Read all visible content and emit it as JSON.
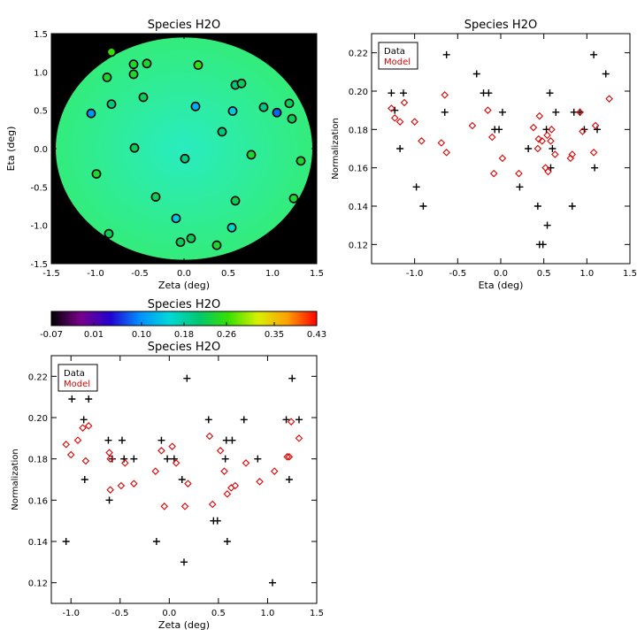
{
  "chart_data": [
    {
      "type": "heatmap",
      "title": "Species H2O",
      "xlabel": "Zeta (deg)",
      "ylabel": "Eta (deg)",
      "xlim": [
        -1.5,
        1.5
      ],
      "ylim": [
        -1.5,
        1.5
      ],
      "xticks": [
        "-1.5",
        "-1.0",
        "-0.5",
        "0.0",
        "0.5",
        "1.0",
        "1.5"
      ],
      "yticks": [
        "-1.5",
        "-1.0",
        "-0.5",
        "0.0",
        "0.5",
        "1.0",
        "1.5"
      ],
      "background_color": "#000000",
      "disk_radius": 1.45,
      "disk_color_center": "#29ecc0",
      "disk_color_edge": "#33ec7b",
      "points": [
        {
          "x": -0.82,
          "y": 1.26,
          "v": 0.26
        },
        {
          "x": -0.57,
          "y": 1.1,
          "v": 0.24
        },
        {
          "x": -0.42,
          "y": 1.11,
          "v": 0.24
        },
        {
          "x": -0.57,
          "y": 0.97,
          "v": 0.24
        },
        {
          "x": -0.87,
          "y": 0.93,
          "v": 0.24
        },
        {
          "x": 0.16,
          "y": 1.09,
          "v": 0.26
        },
        {
          "x": 0.58,
          "y": 0.83,
          "v": 0.2
        },
        {
          "x": 0.65,
          "y": 0.85,
          "v": 0.22
        },
        {
          "x": -0.46,
          "y": 0.67,
          "v": 0.22
        },
        {
          "x": -0.82,
          "y": 0.58,
          "v": 0.2
        },
        {
          "x": -1.05,
          "y": 0.46,
          "v": 0.1
        },
        {
          "x": 0.13,
          "y": 0.55,
          "v": 0.12
        },
        {
          "x": 0.55,
          "y": 0.49,
          "v": 0.14
        },
        {
          "x": 0.9,
          "y": 0.54,
          "v": 0.2
        },
        {
          "x": 1.05,
          "y": 0.47,
          "v": 0.08
        },
        {
          "x": 1.19,
          "y": 0.59,
          "v": 0.22
        },
        {
          "x": 1.22,
          "y": 0.39,
          "v": 0.22
        },
        {
          "x": 0.43,
          "y": 0.22,
          "v": 0.2
        },
        {
          "x": -0.56,
          "y": 0.01,
          "v": 0.22
        },
        {
          "x": 0.01,
          "y": -0.13,
          "v": 0.2
        },
        {
          "x": 0.76,
          "y": -0.08,
          "v": 0.24
        },
        {
          "x": 1.32,
          "y": -0.16,
          "v": 0.24
        },
        {
          "x": -0.99,
          "y": -0.33,
          "v": 0.24
        },
        {
          "x": -0.32,
          "y": -0.63,
          "v": 0.22
        },
        {
          "x": 0.58,
          "y": -0.68,
          "v": 0.22
        },
        {
          "x": 1.24,
          "y": -0.65,
          "v": 0.24
        },
        {
          "x": -0.09,
          "y": -0.91,
          "v": 0.14
        },
        {
          "x": 0.54,
          "y": -1.03,
          "v": 0.16
        },
        {
          "x": -0.85,
          "y": -1.11,
          "v": 0.22
        },
        {
          "x": -0.04,
          "y": -1.22,
          "v": 0.22
        },
        {
          "x": 0.08,
          "y": -1.17,
          "v": 0.22
        },
        {
          "x": 0.37,
          "y": -1.26,
          "v": 0.24
        }
      ]
    },
    {
      "type": "colorbar",
      "title": "Species H2O",
      "range": [
        -0.07,
        0.43
      ],
      "ticks": [
        "-0.07",
        "0.01",
        "0.10",
        "0.18",
        "0.26",
        "0.35",
        "0.43"
      ],
      "colors": [
        "#000000",
        "#7a008c",
        "#2200d0",
        "#0090ff",
        "#00d8d8",
        "#00c870",
        "#36e000",
        "#d8f000",
        "#ffa000",
        "#ff0000"
      ]
    },
    {
      "type": "scatter",
      "title": "Species H2O",
      "xlabel": "Eta (deg)",
      "ylabel": "Normalization",
      "xlim": [
        -1.5,
        1.5
      ],
      "ylim": [
        0.11,
        0.23
      ],
      "xticks": [
        "-1.0",
        "-0.5",
        "0.0",
        "0.5",
        "1.0",
        "1.5"
      ],
      "yticks": [
        "0.12",
        "0.14",
        "0.16",
        "0.18",
        "0.20",
        "0.22"
      ],
      "legend": {
        "position": "top-left",
        "entries": [
          {
            "label": "Data",
            "color": "#000000"
          },
          {
            "label": "Model",
            "color": "#dd0000"
          }
        ]
      },
      "series": [
        {
          "name": "Data",
          "marker": "plus",
          "color": "#000000",
          "x": [
            -1.27,
            -1.13,
            -1.17,
            -0.98,
            -1.23,
            -0.9,
            -0.63,
            -0.65,
            -0.28,
            -0.2,
            -0.14,
            -0.07,
            0.02,
            -0.02,
            0.22,
            0.32,
            0.43,
            0.45,
            0.49,
            0.54,
            0.53,
            0.57,
            0.6,
            0.64,
            0.58,
            0.85,
            0.83,
            0.92,
            0.97,
            1.08,
            1.12,
            1.09,
            1.22
          ],
          "y": [
            0.199,
            0.199,
            0.17,
            0.15,
            0.19,
            0.14,
            0.219,
            0.189,
            0.209,
            0.199,
            0.199,
            0.18,
            0.189,
            0.18,
            0.15,
            0.17,
            0.14,
            0.12,
            0.12,
            0.13,
            0.18,
            0.199,
            0.17,
            0.189,
            0.16,
            0.189,
            0.14,
            0.189,
            0.18,
            0.219,
            0.18,
            0.16,
            0.209
          ]
        },
        {
          "name": "Model",
          "marker": "diamond",
          "color": "#dd0000",
          "x": [
            -1.27,
            -1.23,
            -1.17,
            -1.12,
            -1.0,
            -0.92,
            -0.69,
            -0.65,
            -0.63,
            -0.33,
            -0.15,
            -0.08,
            -0.1,
            0.02,
            0.21,
            0.38,
            0.43,
            0.44,
            0.45,
            0.48,
            0.52,
            0.55,
            0.58,
            0.59,
            0.54,
            0.63,
            0.81,
            0.83,
            0.92,
            0.95,
            1.08,
            1.1,
            1.26
          ],
          "y": [
            0.191,
            0.186,
            0.184,
            0.194,
            0.184,
            0.174,
            0.173,
            0.198,
            0.168,
            0.182,
            0.19,
            0.157,
            0.176,
            0.165,
            0.157,
            0.181,
            0.17,
            0.175,
            0.187,
            0.174,
            0.16,
            0.158,
            0.174,
            0.18,
            0.177,
            0.167,
            0.165,
            0.167,
            0.189,
            0.179,
            0.168,
            0.182,
            0.196
          ]
        }
      ]
    },
    {
      "type": "scatter",
      "title": "Species H2O",
      "xlabel": "Zeta (deg)",
      "ylabel": "Normalization",
      "xlim": [
        -1.2,
        1.5
      ],
      "ylim": [
        0.11,
        0.23
      ],
      "xticks": [
        "-1.0",
        "-0.5",
        "0.0",
        "0.5",
        "1.0",
        "1.5"
      ],
      "yticks": [
        "0.12",
        "0.14",
        "0.16",
        "0.18",
        "0.20",
        "0.22"
      ],
      "legend": {
        "position": "top-left",
        "entries": [
          {
            "label": "Data",
            "color": "#000000"
          },
          {
            "label": "Model",
            "color": "#dd0000"
          }
        ]
      },
      "series": [
        {
          "name": "Data",
          "marker": "plus",
          "color": "#000000",
          "x": [
            -1.05,
            -0.99,
            -0.87,
            -0.82,
            -0.86,
            -0.62,
            -0.58,
            -0.61,
            -0.48,
            -0.46,
            -0.36,
            -0.13,
            -0.08,
            0.05,
            0.13,
            0.15,
            0.18,
            -0.02,
            0.4,
            0.45,
            0.49,
            0.57,
            0.58,
            0.59,
            0.64,
            0.76,
            0.9,
            1.05,
            1.19,
            1.22,
            1.25,
            1.32
          ],
          "y": [
            0.14,
            0.209,
            0.199,
            0.209,
            0.17,
            0.189,
            0.18,
            0.16,
            0.189,
            0.18,
            0.18,
            0.14,
            0.189,
            0.18,
            0.17,
            0.13,
            0.219,
            0.18,
            0.199,
            0.15,
            0.15,
            0.18,
            0.189,
            0.14,
            0.189,
            0.199,
            0.18,
            0.12,
            0.199,
            0.17,
            0.219,
            0.199
          ]
        },
        {
          "name": "Model",
          "marker": "diamond",
          "color": "#dd0000",
          "x": [
            -1.05,
            -1.0,
            -0.93,
            -0.88,
            -0.82,
            -0.85,
            -0.61,
            -0.6,
            -0.6,
            -0.49,
            -0.45,
            -0.36,
            -0.14,
            -0.08,
            -0.05,
            0.03,
            0.07,
            0.16,
            0.19,
            0.41,
            0.44,
            0.52,
            0.56,
            0.59,
            0.63,
            0.67,
            0.78,
            0.92,
            1.07,
            1.2,
            1.22,
            1.24,
            1.32
          ],
          "y": [
            0.187,
            0.182,
            0.189,
            0.195,
            0.196,
            0.179,
            0.183,
            0.18,
            0.165,
            0.167,
            0.178,
            0.168,
            0.174,
            0.184,
            0.157,
            0.186,
            0.178,
            0.157,
            0.168,
            0.191,
            0.158,
            0.184,
            0.174,
            0.163,
            0.166,
            0.167,
            0.178,
            0.169,
            0.174,
            0.181,
            0.181,
            0.198,
            0.19
          ]
        }
      ]
    }
  ]
}
